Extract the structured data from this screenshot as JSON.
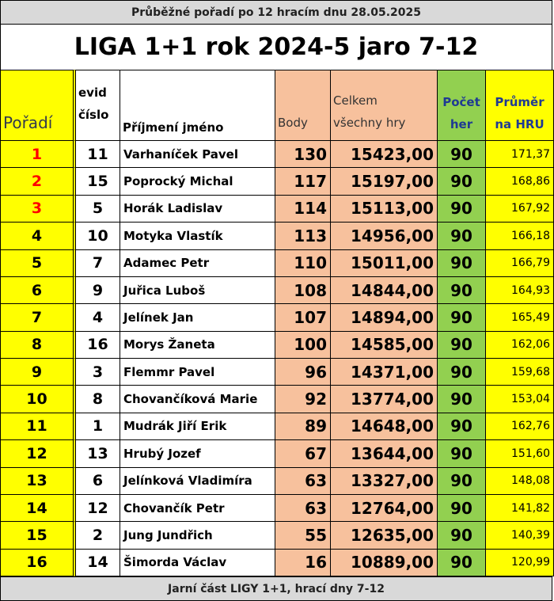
{
  "header": {
    "subtitle": "Průběžné pořadí po 12 hracím dnu 28.05.2025",
    "title": "LIGA 1+1 rok 2024-5 jaro 7-12"
  },
  "table": {
    "columns": [
      [
        "Pořadí"
      ],
      [
        "evid",
        "číslo"
      ],
      [
        "Příjmení jméno"
      ],
      [
        "Body"
      ],
      [
        "Celkem",
        "všechny hry"
      ],
      [
        "Počet",
        "her"
      ],
      [
        "Průměr",
        "na HRU"
      ]
    ],
    "rows": [
      [
        "1",
        "11",
        "Varhaníček Pavel",
        "130",
        "15423,00",
        "90",
        "171,37"
      ],
      [
        "2",
        "15",
        "Poprocký Michal",
        "117",
        "15197,00",
        "90",
        "168,86"
      ],
      [
        "3",
        "5",
        "Horák Ladislav",
        "114",
        "15113,00",
        "90",
        "167,92"
      ],
      [
        "4",
        "10",
        "Motyka Vlastík",
        "113",
        "14956,00",
        "90",
        "166,18"
      ],
      [
        "5",
        "7",
        "Adamec Petr",
        "110",
        "15011,00",
        "90",
        "166,79"
      ],
      [
        "6",
        "9",
        "Juřica Luboš",
        "108",
        "14844,00",
        "90",
        "164,93"
      ],
      [
        "7",
        "4",
        "Jelínek Jan",
        "107",
        "14894,00",
        "90",
        "165,49"
      ],
      [
        "8",
        "16",
        "Morys Žaneta",
        "100",
        "14585,00",
        "90",
        "162,06"
      ],
      [
        "9",
        "3",
        "Flemmr Pavel",
        "96",
        "14371,00",
        "90",
        "159,68"
      ],
      [
        "10",
        "8",
        "Chovančíková Marie",
        "92",
        "13774,00",
        "90",
        "153,04"
      ],
      [
        "11",
        "1",
        "Mudrák Jiří Erik",
        "89",
        "14648,00",
        "90",
        "162,76"
      ],
      [
        "12",
        "13",
        "Hrubý Jozef",
        "67",
        "13644,00",
        "90",
        "151,60"
      ],
      [
        "13",
        "6",
        "Jelínková Vladimíra",
        "63",
        "13327,00",
        "90",
        "148,08"
      ],
      [
        "14",
        "12",
        "Chovančík Petr",
        "63",
        "12764,00",
        "90",
        "141,82"
      ],
      [
        "15",
        "2",
        "Jung Jundřich",
        "55",
        "12635,00",
        "90",
        "140,39"
      ],
      [
        "16",
        "14",
        "Šimorda Václav",
        "16",
        "10889,00",
        "90",
        "120,99"
      ]
    ]
  },
  "footer": {
    "text": "Jarní část LIGY 1+1, hrací dny 7-12"
  }
}
